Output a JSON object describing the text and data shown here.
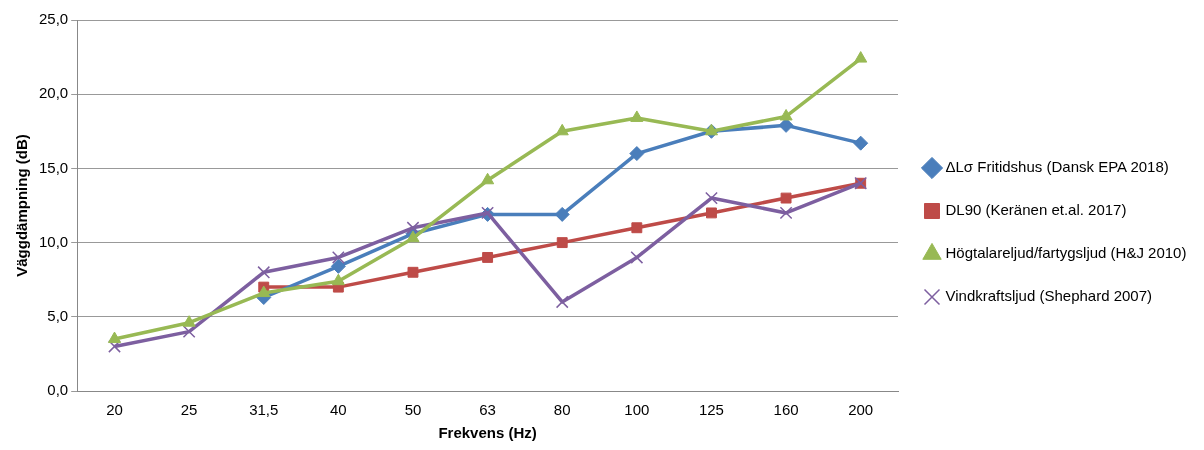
{
  "chart_data": {
    "type": "line",
    "xlabel": "Frekvens (Hz)",
    "ylabel": "Väggdämpning (dB)",
    "categories": [
      "20",
      "25",
      "31,5",
      "40",
      "50",
      "63",
      "80",
      "100",
      "125",
      "160",
      "200"
    ],
    "series": [
      {
        "name": "ΔLσ Fritidshus (Dansk EPA 2018)",
        "color": "#4a7ebb",
        "marker": "diamond",
        "values": [
          null,
          null,
          6.3,
          8.4,
          10.6,
          11.9,
          11.9,
          16.0,
          17.5,
          17.9,
          16.7
        ]
      },
      {
        "name": "DL90 (Keränen et.al. 2017)",
        "color": "#be4b48",
        "marker": "square",
        "values": [
          null,
          null,
          7.0,
          7.0,
          8.0,
          9.0,
          10.0,
          11.0,
          12.0,
          13.0,
          14.0
        ]
      },
      {
        "name": "Högtalareljud/fartygsljud (H&J 2010)",
        "color": "#98b954",
        "marker": "triangle",
        "values": [
          3.5,
          4.6,
          6.6,
          7.4,
          10.3,
          14.2,
          17.5,
          18.4,
          17.5,
          18.5,
          22.4
        ]
      },
      {
        "name": "Vindkraftsljud (Shephard 2007)",
        "color": "#7d5fa0",
        "marker": "cross",
        "values": [
          3.0,
          4.0,
          8.0,
          9.0,
          11.0,
          12.0,
          6.0,
          9.0,
          13.0,
          12.0,
          14.0
        ]
      }
    ],
    "ylim": [
      0,
      25
    ],
    "yticks": [
      {
        "value": 0,
        "label": "0,0"
      },
      {
        "value": 5,
        "label": "5,0"
      },
      {
        "value": 10,
        "label": "10,0"
      },
      {
        "value": 15,
        "label": "15,0"
      },
      {
        "value": 20,
        "label": "20,0"
      },
      {
        "value": 25,
        "label": "25,0"
      }
    ],
    "grid": "y",
    "legend": "right",
    "line_style": "solid"
  }
}
